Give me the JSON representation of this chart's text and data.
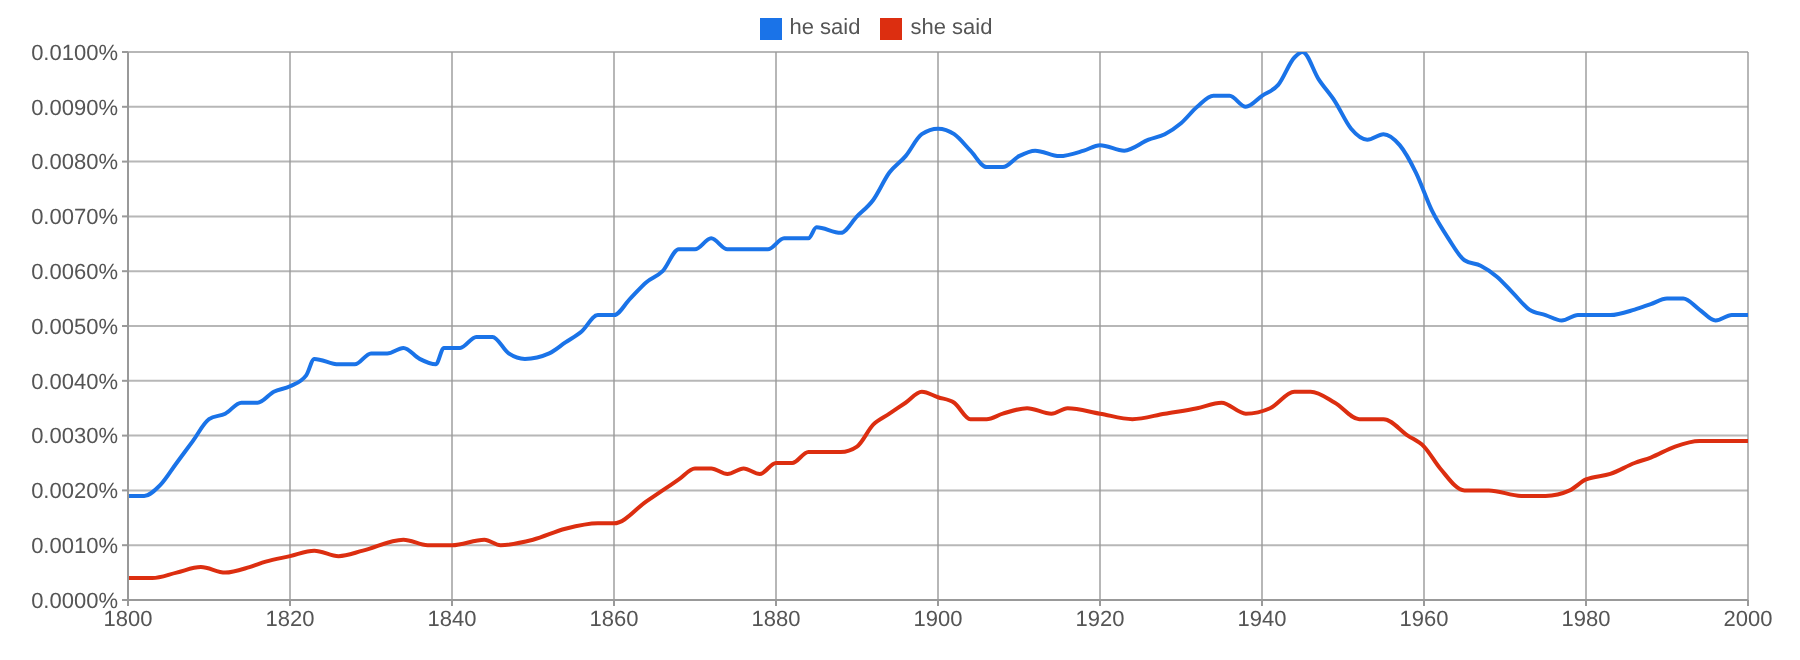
{
  "chart_data": {
    "type": "line",
    "xlim": [
      1800,
      2000
    ],
    "xticks": [
      1800,
      1820,
      1840,
      1860,
      1880,
      1900,
      1920,
      1940,
      1960,
      1980,
      2000
    ],
    "ylim": [
      0,
      0.01
    ],
    "yticks": [
      {
        "value": 0,
        "label": "0.0000%"
      },
      {
        "value": 0.001,
        "label": "0.0010%"
      },
      {
        "value": 0.002,
        "label": "0.0020%"
      },
      {
        "value": 0.003,
        "label": "0.0030%"
      },
      {
        "value": 0.004,
        "label": "0.0040%"
      },
      {
        "value": 0.005,
        "label": "0.0050%"
      },
      {
        "value": 0.006,
        "label": "0.0060%"
      },
      {
        "value": 0.007,
        "label": "0.0070%"
      },
      {
        "value": 0.008,
        "label": "0.0080%"
      },
      {
        "value": 0.009,
        "label": "0.0090%"
      },
      {
        "value": 0.01,
        "label": "0.0100%"
      }
    ],
    "grid": true,
    "legend": "top",
    "series": [
      {
        "name": "he said",
        "color": "#1a73e8",
        "x": [
          1800,
          1802,
          1804,
          1806,
          1808,
          1810,
          1812,
          1814,
          1816,
          1818,
          1820,
          1822,
          1823,
          1826,
          1828,
          1830,
          1832,
          1834,
          1836,
          1838,
          1839,
          1841,
          1843,
          1845,
          1847,
          1849,
          1852,
          1854,
          1856,
          1858,
          1860,
          1862,
          1864,
          1866,
          1868,
          1870,
          1872,
          1874,
          1876,
          1878,
          1879,
          1881,
          1884,
          1885,
          1888,
          1890,
          1892,
          1894,
          1896,
          1898,
          1900,
          1902,
          1904,
          1906,
          1908,
          1910,
          1912,
          1915,
          1918,
          1920,
          1923,
          1926,
          1928,
          1930,
          1932,
          1934,
          1936,
          1938,
          1940,
          1942,
          1944,
          1945,
          1947,
          1949,
          1951,
          1953,
          1955,
          1957,
          1959,
          1961,
          1963,
          1965,
          1967,
          1969,
          1971,
          1973,
          1975,
          1977,
          1979,
          1983,
          1986,
          1988,
          1990,
          1992,
          1994,
          1996,
          1998,
          2000
        ],
        "values": [
          0.0019,
          0.0019,
          0.0021,
          0.0025,
          0.0029,
          0.0033,
          0.0034,
          0.0036,
          0.0036,
          0.0038,
          0.0039,
          0.0041,
          0.0044,
          0.0043,
          0.0043,
          0.0045,
          0.0045,
          0.0046,
          0.0044,
          0.0043,
          0.0046,
          0.0046,
          0.0048,
          0.0048,
          0.0045,
          0.0044,
          0.0045,
          0.0047,
          0.0049,
          0.0052,
          0.0052,
          0.0055,
          0.0058,
          0.006,
          0.0064,
          0.0064,
          0.0066,
          0.0064,
          0.0064,
          0.0064,
          0.0064,
          0.0066,
          0.0066,
          0.0068,
          0.0067,
          0.007,
          0.0073,
          0.0078,
          0.0081,
          0.0085,
          0.0086,
          0.0085,
          0.0082,
          0.0079,
          0.0079,
          0.0081,
          0.0082,
          0.0081,
          0.0082,
          0.0083,
          0.0082,
          0.0084,
          0.0085,
          0.0087,
          0.009,
          0.0092,
          0.0092,
          0.009,
          0.0092,
          0.0094,
          0.0099,
          0.01,
          0.0095,
          0.0091,
          0.0086,
          0.0084,
          0.0085,
          0.0083,
          0.0078,
          0.0071,
          0.0066,
          0.0062,
          0.0061,
          0.0059,
          0.0056,
          0.0053,
          0.0052,
          0.0051,
          0.0052,
          0.0052,
          0.0053,
          0.0054,
          0.0055,
          0.0055,
          0.0053,
          0.0051,
          0.0052,
          0.0052
        ]
      },
      {
        "name": "she said",
        "color": "#dc2e10",
        "x": [
          1800,
          1803,
          1806,
          1809,
          1812,
          1815,
          1817,
          1820,
          1823,
          1826,
          1829,
          1834,
          1837,
          1840,
          1844,
          1846,
          1850,
          1854,
          1858,
          1860,
          1864,
          1866,
          1868,
          1870,
          1872,
          1874,
          1876,
          1878,
          1880,
          1882,
          1884,
          1886,
          1888,
          1890,
          1892,
          1894,
          1896,
          1898,
          1900,
          1902,
          1904,
          1906,
          1908,
          1911,
          1914,
          1916,
          1920,
          1924,
          1928,
          1932,
          1935,
          1938,
          1941,
          1944,
          1946,
          1949,
          1952,
          1955,
          1958,
          1960,
          1962,
          1965,
          1968,
          1972,
          1975,
          1978,
          1980,
          1983,
          1986,
          1988,
          1991,
          1994,
          1996,
          1998,
          2000
        ],
        "values": [
          0.0004,
          0.0004,
          0.0005,
          0.0006,
          0.0005,
          0.0006,
          0.0007,
          0.0008,
          0.0009,
          0.0008,
          0.0009,
          0.0011,
          0.001,
          0.001,
          0.0011,
          0.001,
          0.0011,
          0.0013,
          0.0014,
          0.0014,
          0.0018,
          0.002,
          0.0022,
          0.0024,
          0.0024,
          0.0023,
          0.0024,
          0.0023,
          0.0025,
          0.0025,
          0.0027,
          0.0027,
          0.0027,
          0.0028,
          0.0032,
          0.0034,
          0.0036,
          0.0038,
          0.0037,
          0.0036,
          0.0033,
          0.0033,
          0.0034,
          0.0035,
          0.0034,
          0.0035,
          0.0034,
          0.0033,
          0.0034,
          0.0035,
          0.0036,
          0.0034,
          0.0035,
          0.0038,
          0.0038,
          0.0036,
          0.0033,
          0.0033,
          0.003,
          0.0028,
          0.0024,
          0.002,
          0.002,
          0.0019,
          0.0019,
          0.002,
          0.0022,
          0.0023,
          0.0025,
          0.0026,
          0.0028,
          0.0029,
          0.0029,
          0.0029,
          0.0029
        ]
      }
    ]
  }
}
